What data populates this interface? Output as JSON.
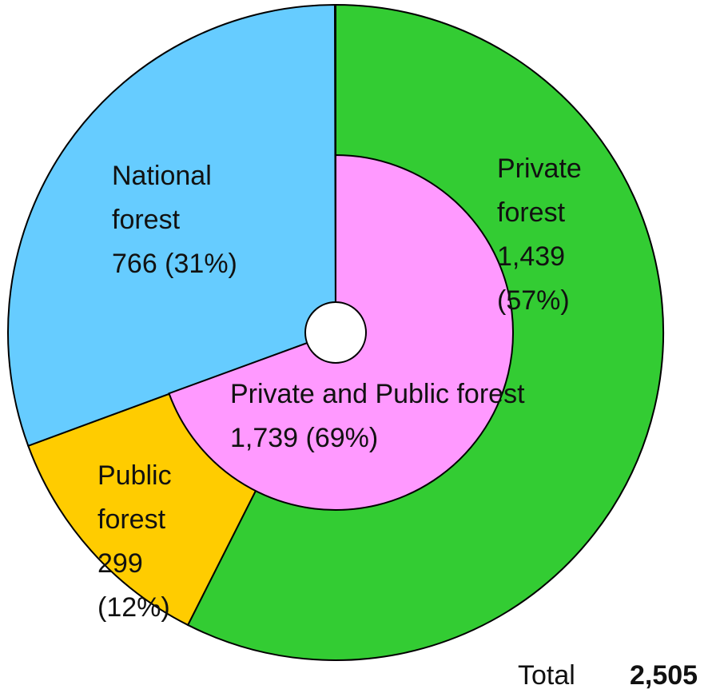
{
  "chart_data": {
    "type": "pie",
    "rings": [
      {
        "categories": [
          "Private forest",
          "Public forest",
          "National forest"
        ],
        "values": [
          1439,
          299,
          766
        ],
        "value_labels": [
          "1,439 (57%)",
          "299 (12%)",
          "766 (31%)"
        ],
        "colors": [
          "#33cc33",
          "#ffcc00",
          "#66ccff"
        ]
      },
      {
        "categories": [
          "Private and Public forest"
        ],
        "values": [
          1739
        ],
        "value_labels": [
          "1,739 (69%)"
        ],
        "colors": [
          "#ff99ff"
        ]
      }
    ],
    "total": {
      "label": "Total",
      "value": 2505,
      "value_label": "2,505"
    }
  }
}
